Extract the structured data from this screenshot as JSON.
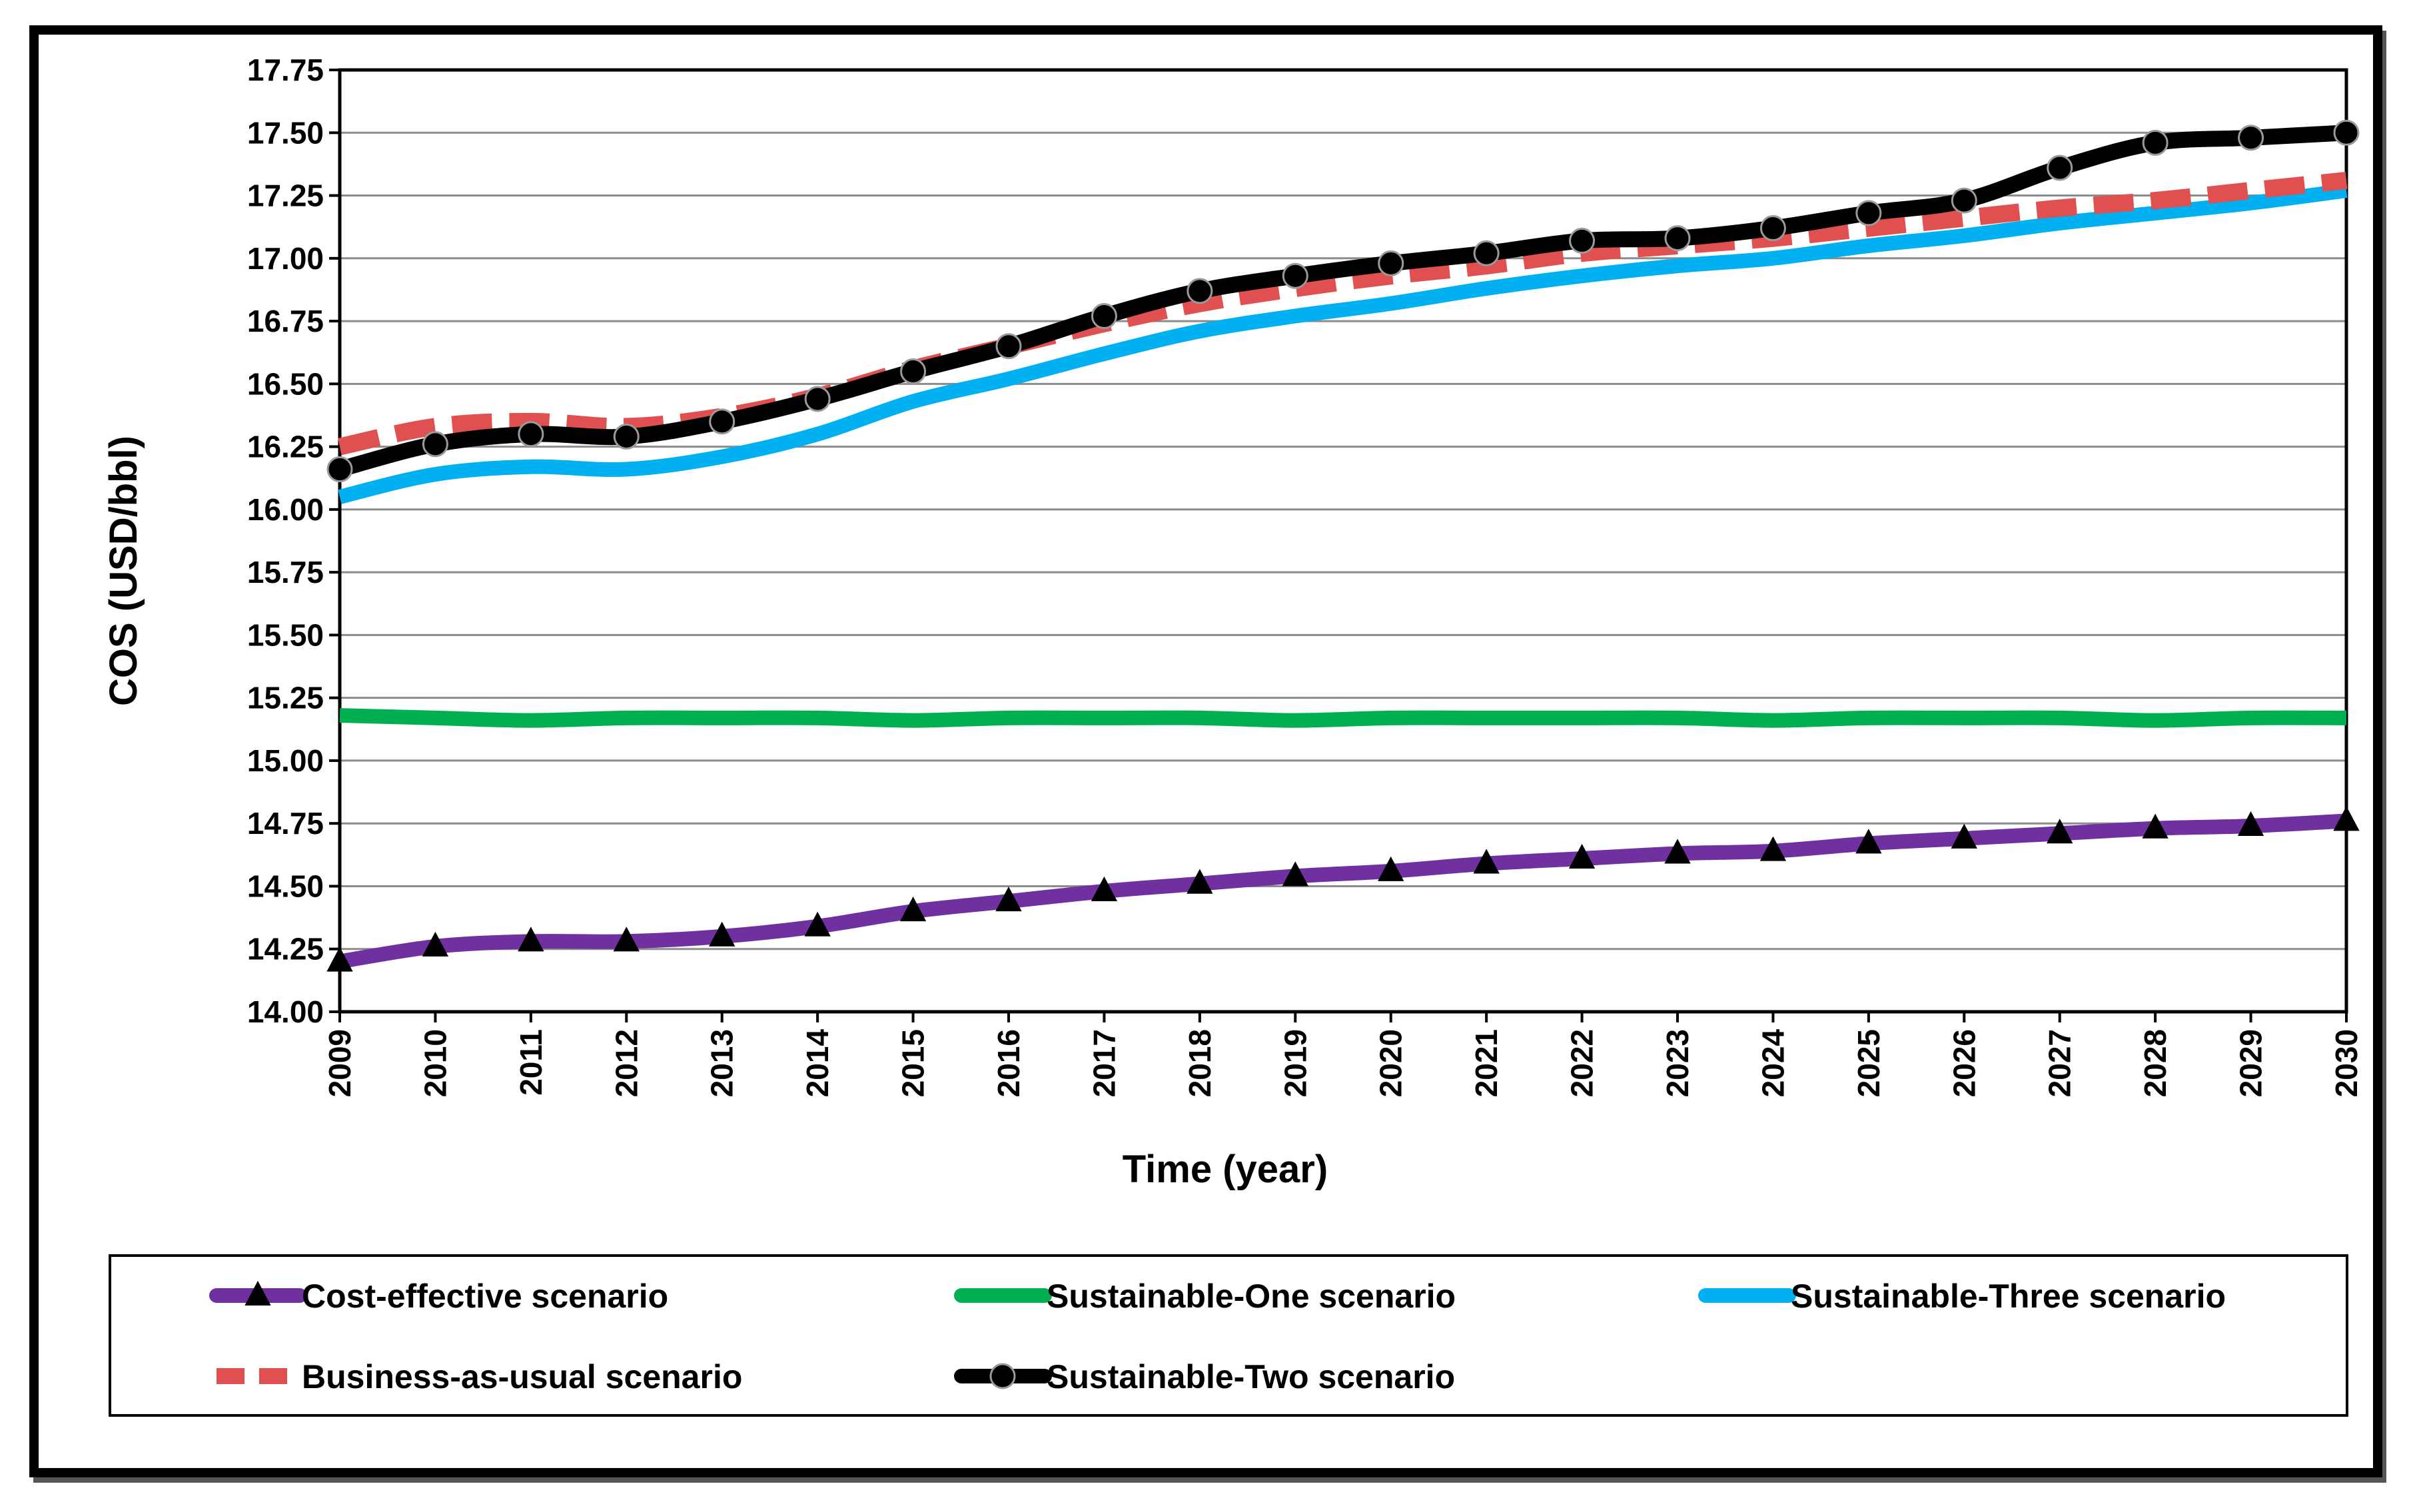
{
  "chart_data": {
    "type": "line",
    "title": "",
    "xlabel": "Time (year)",
    "ylabel": "COS (USD/bbl)",
    "ylim": [
      14.0,
      17.75
    ],
    "yticks": [
      "14.00",
      "14.25",
      "14.50",
      "14.75",
      "15.00",
      "15.25",
      "15.50",
      "15.75",
      "16.00",
      "16.25",
      "16.50",
      "16.75",
      "17.00",
      "17.25",
      "17.50",
      "17.75"
    ],
    "grid": true,
    "legend_position": "bottom",
    "categories": [
      "2009",
      "2010",
      "2011",
      "2012",
      "2013",
      "2014",
      "2015",
      "2016",
      "2017",
      "2018",
      "2019",
      "2020",
      "2021",
      "2022",
      "2023",
      "2024",
      "2025",
      "2026",
      "2027",
      "2028",
      "2029",
      "2030"
    ],
    "series": [
      {
        "name": "Cost-effective scenario",
        "color": "#7030A0",
        "dash": "solid",
        "marker": "triangle",
        "values": [
          14.2,
          14.26,
          14.28,
          14.28,
          14.3,
          14.34,
          14.4,
          14.44,
          14.48,
          14.51,
          14.54,
          14.56,
          14.59,
          14.61,
          14.63,
          14.64,
          14.67,
          14.69,
          14.71,
          14.73,
          14.74,
          14.76
        ]
      },
      {
        "name": "Sustainable-One scenario",
        "color": "#00B050",
        "dash": "solid",
        "marker": "none",
        "values": [
          15.18,
          15.17,
          15.16,
          15.17,
          15.17,
          15.17,
          15.16,
          15.17,
          15.17,
          15.17,
          15.16,
          15.17,
          15.17,
          15.17,
          15.17,
          15.16,
          15.17,
          15.17,
          15.17,
          15.16,
          15.17,
          15.17
        ]
      },
      {
        "name": "Sustainable-Three scenario",
        "color": "#00B0F0",
        "dash": "solid",
        "marker": "none",
        "values": [
          16.05,
          16.14,
          16.17,
          16.16,
          16.21,
          16.3,
          16.43,
          16.52,
          16.62,
          16.71,
          16.77,
          16.82,
          16.88,
          16.93,
          16.97,
          17.0,
          17.05,
          17.09,
          17.14,
          17.18,
          17.22,
          17.27
        ]
      },
      {
        "name": "Business-as-usual scenario",
        "color": "#E05050",
        "dash": "dashed",
        "marker": "none",
        "values": [
          16.25,
          16.33,
          16.35,
          16.33,
          16.37,
          16.45,
          16.56,
          16.65,
          16.74,
          16.82,
          16.88,
          16.93,
          16.97,
          17.02,
          17.05,
          17.08,
          17.12,
          17.16,
          17.2,
          17.23,
          17.27,
          17.31
        ]
      },
      {
        "name": "Sustainable-Two scenario",
        "color": "#000000",
        "dash": "solid",
        "marker": "circle",
        "values": [
          16.16,
          16.26,
          16.3,
          16.29,
          16.35,
          16.44,
          16.55,
          16.65,
          16.77,
          16.87,
          16.93,
          16.98,
          17.02,
          17.07,
          17.08,
          17.12,
          17.18,
          17.23,
          17.36,
          17.46,
          17.48,
          17.5
        ]
      }
    ]
  }
}
